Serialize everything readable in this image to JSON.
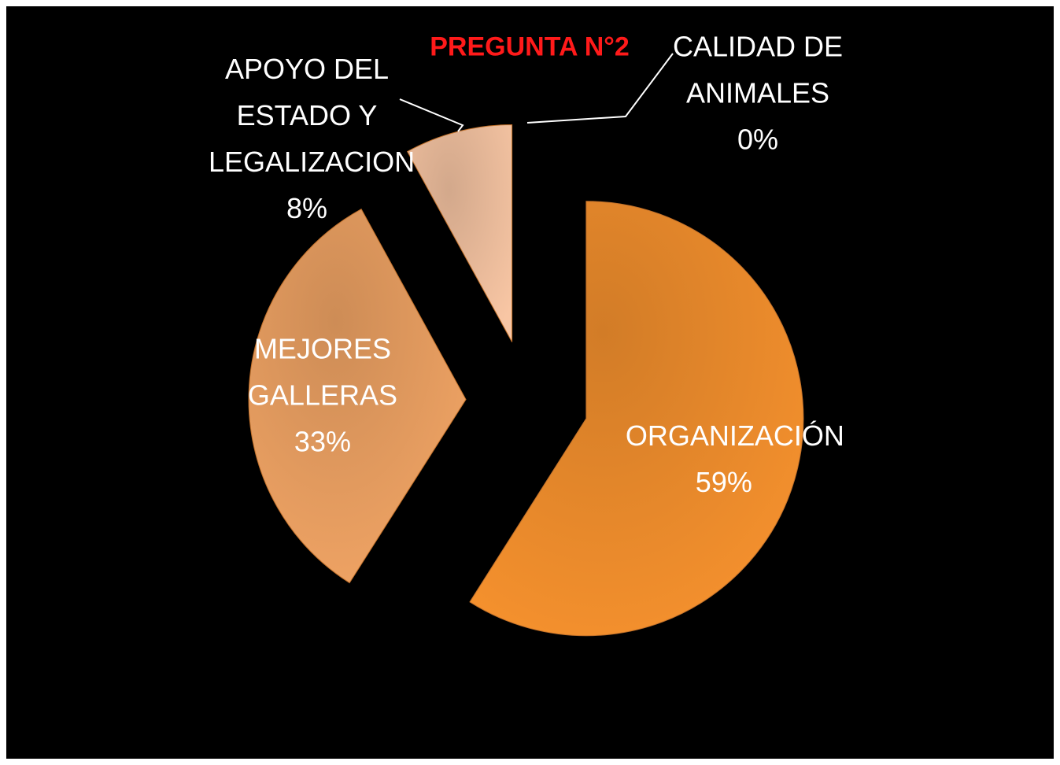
{
  "chart_data": {
    "type": "pie",
    "title": "PREGUNTA N°2",
    "categories": [
      "ORGANIZACIÓN",
      "MEJORES GALLERAS",
      "APOYO DEL ESTADO Y LEGALIZACION",
      "CALIDAD DE ANIMALES"
    ],
    "values": [
      59,
      33,
      8,
      0
    ],
    "value_labels": [
      "59%",
      "33%",
      "8%",
      "0%"
    ],
    "colors": [
      "#f7922e",
      "#f2a565",
      "#f8c6a4",
      "#fbd9c3"
    ]
  }
}
